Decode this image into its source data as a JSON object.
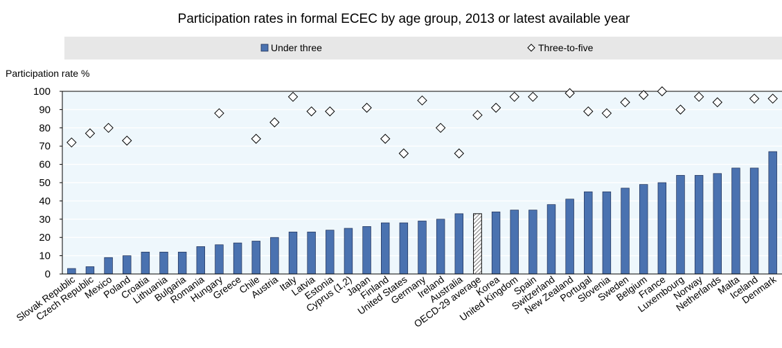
{
  "chart_data": {
    "type": "bar",
    "title": "Participation rates in formal ECEC by age group, 2013 or latest available year",
    "ylabel": "Participation rate %",
    "ylim": [
      0,
      100
    ],
    "yticks": [
      0,
      10,
      20,
      30,
      40,
      50,
      60,
      70,
      80,
      90,
      100
    ],
    "legend_position": "top",
    "categories": [
      "Slovak Republic",
      "Czech Republic",
      "Mexico",
      "Poland",
      "Croatia",
      "Lithuania",
      "Bulgaria",
      "Romania",
      "Hungary",
      "Greece",
      "Chile",
      "Austria",
      "Italy",
      "Latvia",
      "Estonia",
      "Cyprus (1,2)",
      "Japan",
      "Finland",
      "United States",
      "Germany",
      "Ireland",
      "Australia",
      "OECD-29 average",
      "Korea",
      "United Kingdom",
      "Spain",
      "Switzerland",
      "New Zealand",
      "Portugal",
      "Slovenia",
      "Sweden",
      "Belgium",
      "France",
      "Luxembourg",
      "Norway",
      "Netherlands",
      "Malta",
      "Iceland",
      "Denmark"
    ],
    "highlight_category": "OECD-29 average",
    "series": [
      {
        "name": "Under three",
        "kind": "bar",
        "color": "#4a72b0",
        "values": [
          3,
          4,
          9,
          10,
          12,
          12,
          12,
          15,
          16,
          17,
          18,
          20,
          23,
          23,
          24,
          25,
          26,
          28,
          28,
          29,
          30,
          33,
          33,
          34,
          35,
          35,
          38,
          41,
          45,
          45,
          47,
          49,
          50,
          54,
          54,
          55,
          58,
          58,
          67
        ]
      },
      {
        "name": "Three-to-five",
        "kind": "marker",
        "marker": "diamond",
        "values": [
          72,
          77,
          80,
          73,
          null,
          null,
          null,
          null,
          88,
          null,
          74,
          83,
          97,
          89,
          89,
          null,
          91,
          74,
          66,
          95,
          80,
          66,
          87,
          91,
          97,
          97,
          null,
          99,
          89,
          88,
          94,
          98,
          100,
          90,
          97,
          94,
          null,
          96,
          96
        ]
      }
    ]
  }
}
